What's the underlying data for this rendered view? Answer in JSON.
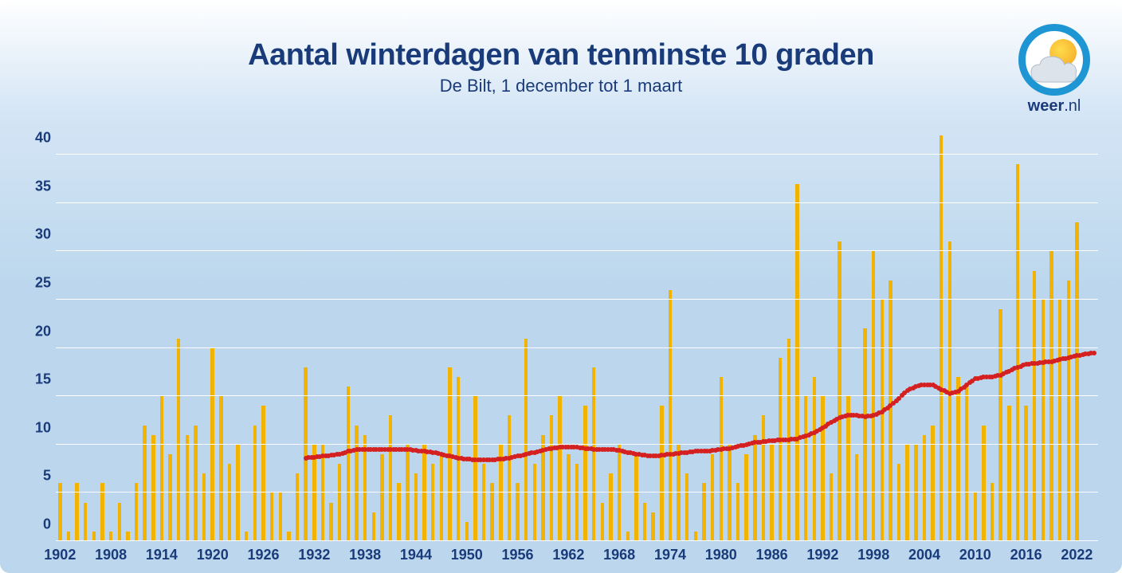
{
  "title": "Aantal winterdagen van tenminste 10 graden",
  "subtitle": "De Bilt, 1 december tot 1 maart",
  "logo_text_before": "weer",
  "logo_text_after": ".nl",
  "chart": {
    "type": "bar_with_trend",
    "bar_color": "#f2b200",
    "trend_color": "#d42020",
    "grid_color": "#ffffff",
    "title_color": "#1a3b7a",
    "label_color": "#1a3b7a",
    "title_fontsize": 38,
    "subtitle_fontsize": 22,
    "label_fontsize": 18,
    "background_gradient": [
      "#ffffff",
      "#d4e5f5",
      "#bcd7ed"
    ],
    "ylim": [
      0,
      42
    ],
    "ytick_step": 5,
    "yticks": [
      0,
      5,
      10,
      15,
      20,
      25,
      30,
      35,
      40
    ],
    "xstart": 1902,
    "xend": 2024,
    "xtick_step": 6,
    "xticks": [
      1902,
      1908,
      1914,
      1920,
      1926,
      1932,
      1938,
      1944,
      1950,
      1956,
      1962,
      1968,
      1974,
      1980,
      1986,
      1992,
      1998,
      2004,
      2010,
      2016,
      2022
    ],
    "bar_width_ratio": 0.42,
    "values": [
      6,
      1,
      6,
      4,
      1,
      6,
      1,
      4,
      1,
      6,
      12,
      11,
      15,
      9,
      21,
      11,
      12,
      7,
      20,
      15,
      8,
      10,
      1,
      12,
      14,
      5,
      5,
      1,
      7,
      18,
      10,
      10,
      4,
      8,
      16,
      12,
      11,
      3,
      9,
      13,
      6,
      10,
      7,
      10,
      8,
      9,
      18,
      17,
      2,
      15,
      8,
      6,
      10,
      13,
      6,
      21,
      8,
      11,
      13,
      15,
      9,
      8,
      14,
      18,
      4,
      7,
      10,
      1,
      9,
      4,
      3,
      14,
      26,
      10,
      7,
      1,
      6,
      9,
      17,
      10,
      6,
      9,
      11,
      13,
      10,
      19,
      21,
      37,
      15,
      17,
      15,
      7,
      31,
      15,
      9,
      22,
      30,
      25,
      27,
      8,
      10,
      10,
      11,
      12,
      42,
      31,
      17,
      16,
      5,
      12,
      6,
      24,
      14,
      39,
      14,
      28,
      25,
      30,
      25,
      27,
      33
    ],
    "trend_start_year": 1931,
    "trend": [
      8.6,
      8.7,
      8.8,
      8.9,
      9.0,
      9.3,
      9.5,
      9.5,
      9.5,
      9.5,
      9.5,
      9.5,
      9.5,
      9.4,
      9.3,
      9.2,
      9.0,
      8.8,
      8.6,
      8.5,
      8.4,
      8.4,
      8.4,
      8.5,
      8.6,
      8.8,
      9.0,
      9.2,
      9.4,
      9.6,
      9.7,
      9.7,
      9.7,
      9.6,
      9.5,
      9.5,
      9.5,
      9.4,
      9.2,
      9.0,
      8.9,
      8.8,
      8.9,
      9.0,
      9.1,
      9.2,
      9.3,
      9.3,
      9.4,
      9.5,
      9.6,
      9.8,
      10.0,
      10.2,
      10.3,
      10.4,
      10.5,
      10.5,
      10.6,
      10.9,
      11.2,
      11.7,
      12.3,
      12.8,
      13.0,
      13.0,
      12.9,
      13.0,
      13.4,
      14.0,
      14.8,
      15.6,
      16.0,
      16.2,
      16.2,
      15.7,
      15.3,
      15.5,
      16.2,
      16.8,
      17.0,
      17.0,
      17.2,
      17.6,
      18.0,
      18.3,
      18.4,
      18.5,
      18.6,
      18.8,
      19.0,
      19.2,
      19.4,
      19.5
    ]
  }
}
